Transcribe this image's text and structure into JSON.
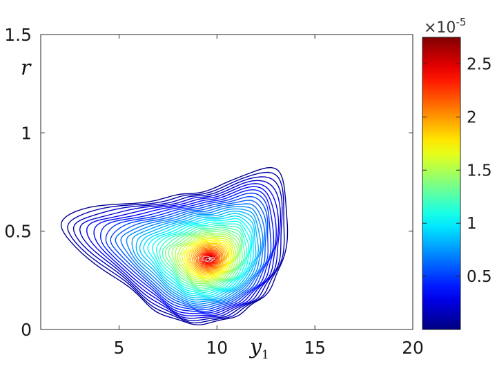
{
  "chart_data": [
    {
      "type": "contour",
      "xlabel": "y",
      "xlabel_subscript": "1",
      "ylabel": "r",
      "xlim": [
        1,
        20
      ],
      "ylim": [
        0,
        1.5
      ],
      "x_ticks": [
        "5",
        "10",
        "15",
        "20"
      ],
      "y_ticks": [
        "0",
        "0.5",
        "1",
        "1.5"
      ],
      "grid": false,
      "colormap": "jet",
      "peak": {
        "x": 9.6,
        "y": 0.36,
        "value": 2.75e-05
      },
      "levels": {
        "min": 5e-07,
        "max": 2.7e-05,
        "count": 46
      },
      "contour_extent": {
        "x": [
          3.0,
          14.5
        ],
        "y": [
          0.08,
          0.79
        ]
      },
      "colorbar": {
        "range": [
          0.0,
          2.75
        ],
        "multiplier": "×10",
        "exponent": "-5",
        "ticks": [
          "0.5",
          "1",
          "1.5",
          "2",
          "2.5"
        ],
        "tick_values": [
          0.5,
          1.0,
          1.5,
          2.0,
          2.5
        ]
      }
    }
  ],
  "colors": {
    "axis": "#262626",
    "low_level": "#00008f",
    "high_level": "#7f0000"
  }
}
